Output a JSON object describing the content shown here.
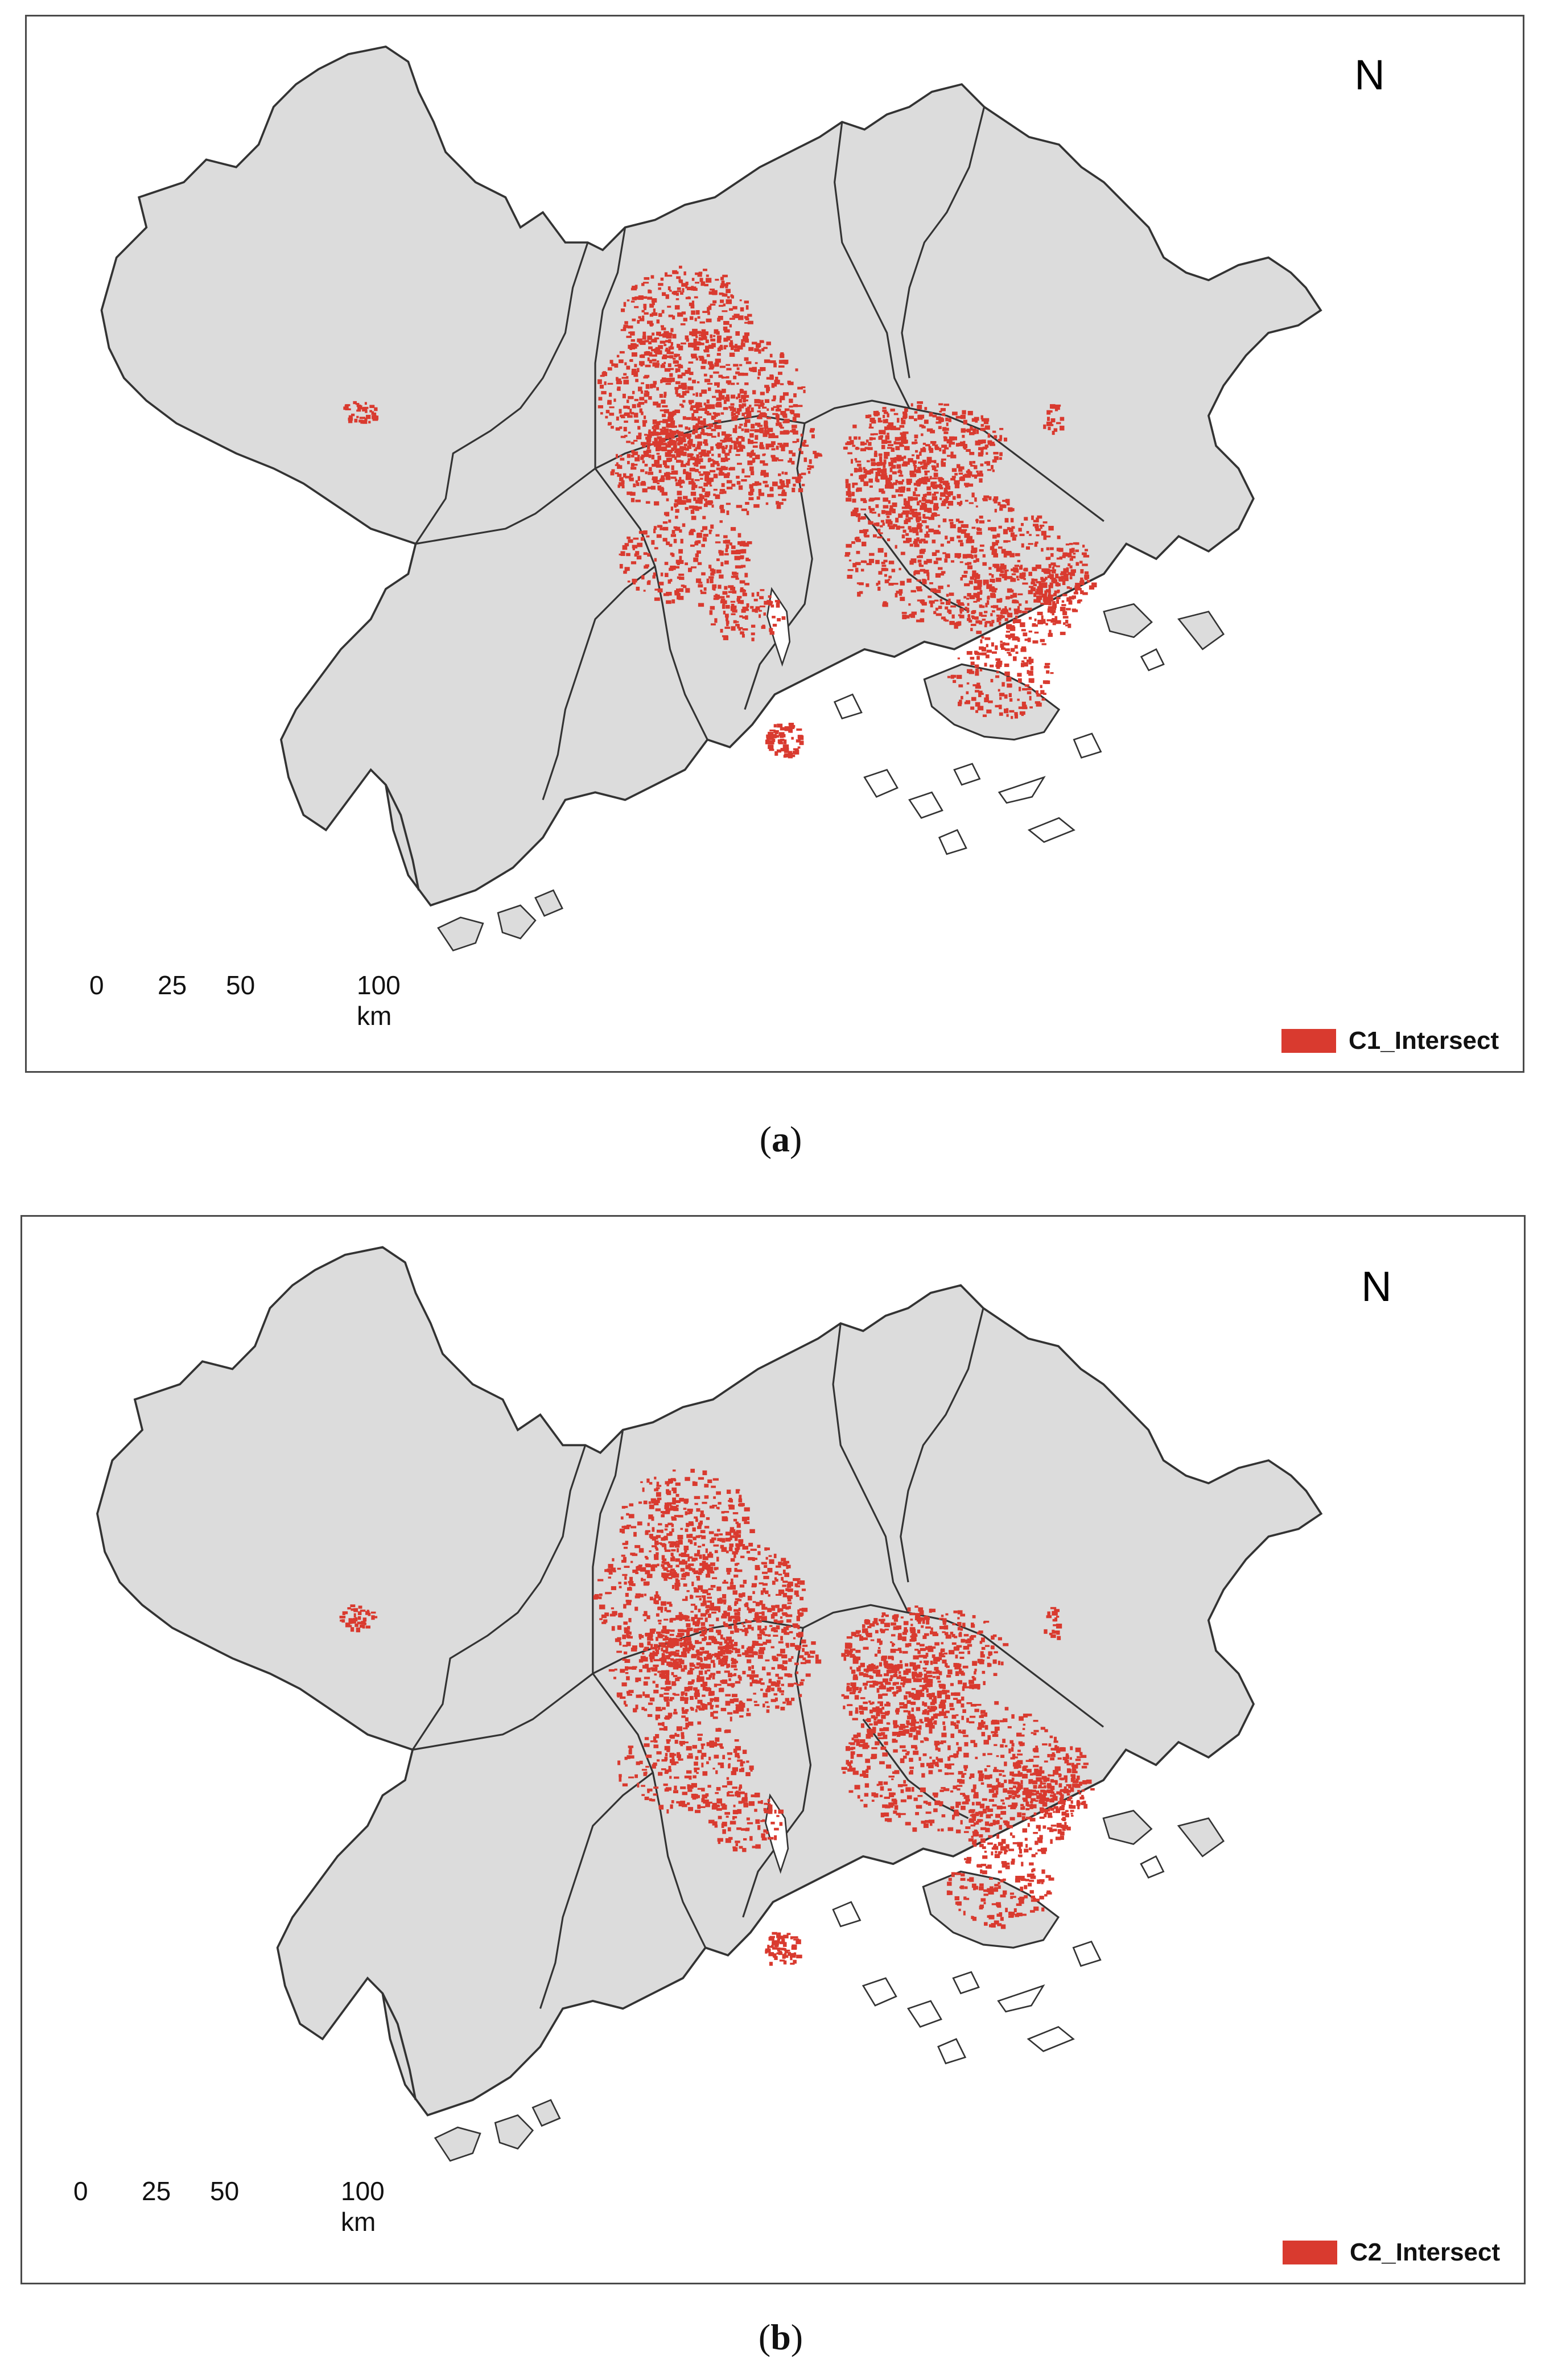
{
  "figure": {
    "panels": [
      {
        "caption_open": "(",
        "caption_letter": "a",
        "caption_close": ")",
        "legend_label": "C1_Intersect",
        "north_label": "N",
        "scale_ticks": [
          "0",
          "25",
          "50",
          "100 km"
        ]
      },
      {
        "caption_open": "(",
        "caption_letter": "b",
        "caption_close": ")",
        "legend_label": "C2_Intersect",
        "north_label": "N",
        "scale_ticks": [
          "0",
          "25",
          "50",
          "100 km"
        ]
      }
    ]
  },
  "colors": {
    "land_fill": "#dcdcdc",
    "boundary": "#333333",
    "intersect": "#d93a2f"
  },
  "icons": [
    "north-arrow-icon",
    "scale-bar-icon",
    "legend-swatch"
  ]
}
